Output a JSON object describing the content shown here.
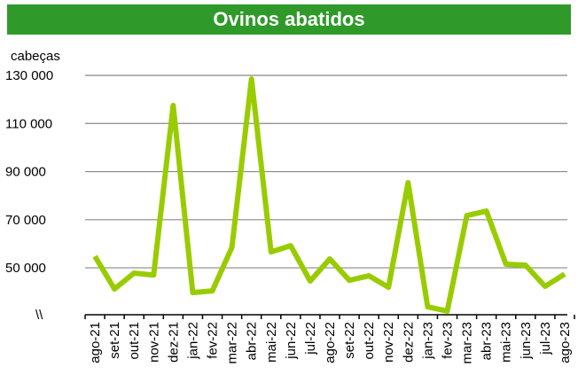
{
  "chart_data": {
    "type": "line",
    "title": "Ovinos abatidos",
    "ylabel": "cabeças",
    "axis_break": "\\\\",
    "categories": [
      "ago-21",
      "set-21",
      "out-21",
      "nov-21",
      "dez-21",
      "jan-22",
      "fev-22",
      "mar-22",
      "abr-22",
      "mai-22",
      "jun-22",
      "jul-22",
      "ago-22",
      "set-22",
      "out-22",
      "nov-22",
      "dez-22",
      "jan-23",
      "fev-23",
      "mar-23",
      "abr-23",
      "mai-23",
      "jun-23",
      "jul-23",
      "ago-23"
    ],
    "series": [
      {
        "name": "Ovinos abatidos",
        "color": "#99cc00",
        "values": [
          54800,
          41200,
          47800,
          47000,
          117500,
          39700,
          40400,
          58500,
          128500,
          56600,
          59200,
          44500,
          53700,
          44800,
          46700,
          41900,
          85400,
          33800,
          32000,
          71700,
          73600,
          51500,
          51100,
          42300,
          47400
        ]
      }
    ],
    "ylim": [
      30500,
      130000
    ],
    "yticks": [
      {
        "value": 50000,
        "label": "50 000"
      },
      {
        "value": 70000,
        "label": "70 000"
      },
      {
        "value": 90000,
        "label": "90 000"
      },
      {
        "value": 110000,
        "label": "110 000"
      },
      {
        "value": 130000,
        "label": "130 000"
      }
    ],
    "grid": true
  }
}
